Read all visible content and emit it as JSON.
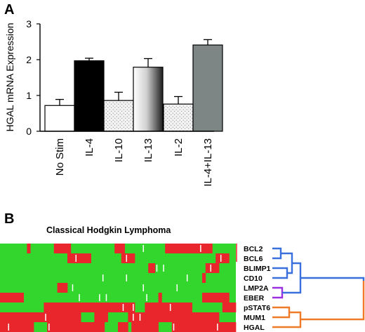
{
  "panels": {
    "a": "A",
    "b": "B"
  },
  "chart_data": [
    {
      "type": "bar",
      "ylabel": "HGAL mRNA Expression",
      "ylim": [
        0,
        3
      ],
      "yticks": [
        0,
        1,
        2,
        3
      ],
      "categories": [
        "No Stim",
        "IL-4",
        "IL-10",
        "IL-13",
        "IL-2",
        "IL-4+IL-13"
      ],
      "values": [
        0.72,
        1.97,
        0.86,
        1.79,
        0.76,
        2.41
      ],
      "errors": [
        0.17,
        0.07,
        0.23,
        0.24,
        0.21,
        0.15
      ],
      "fills": [
        "white",
        "black",
        "stipple",
        "gradient",
        "stipple",
        "gray"
      ]
    },
    {
      "type": "heatmap",
      "title": "Classical Hodgkin Lymphoma",
      "rows": [
        "BCL2",
        "BCL6",
        "BLIMP1",
        "CD10",
        "LMP2A",
        "EBER",
        "pSTAT6",
        "MUM1",
        "HGAL"
      ],
      "row_red_fraction": [
        0.14,
        0.09,
        0.05,
        0.05,
        0.27,
        0.18,
        0.83,
        0.86,
        0.92
      ],
      "colors": {
        "high": "#e8262c",
        "low": "#33d62c",
        "missing": "#ffffff"
      },
      "dendrogram_clusters": [
        {
          "members": [
            "BCL2",
            "BCL6",
            "BLIMP1",
            "CD10"
          ],
          "color": "#3a70dd"
        },
        {
          "members": [
            "LMP2A",
            "EBER"
          ],
          "color": "#9b30e0"
        },
        {
          "members": [
            "pSTAT6",
            "MUM1",
            "HGAL"
          ],
          "color": "#f07a28"
        }
      ]
    }
  ]
}
